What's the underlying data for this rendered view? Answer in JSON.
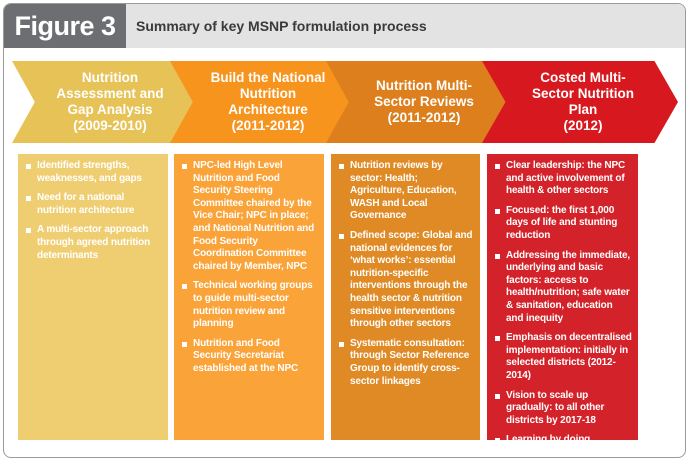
{
  "header": {
    "figure": "Figure 3",
    "title": "Summary of key MSNP formulation process"
  },
  "stages": [
    {
      "title": "Nutrition Assessment and Gap Analysis",
      "period": "(2009-2010)",
      "bullets": [
        "Identified strengths, weaknesses, and gaps",
        "Need for a national nutrition architecture",
        "A multi-sector approach through agreed nutrition determinants"
      ]
    },
    {
      "title": "Build the National Nutrition Architecture",
      "period": "(2011-2012)",
      "bullets": [
        "NPC-led High Level Nutrition and Food Security Steering Committee chaired by the Vice Chair; NPC in place; and National Nutrition and Food Security Coordination Committee chaired by Member, NPC",
        "Technical working groups to guide multi-sector nutrition review and planning",
        "Nutrition and Food Security Secretariat established at the NPC"
      ]
    },
    {
      "title": "Nutrition Multi-Sector Reviews",
      "period": "(2011-2012)",
      "bullets": [
        "Nutrition reviews by sector: Health; Agriculture, Education, WASH and Local Governance",
        "Defined scope: Global and national evidences for ‘what works’: essential nutrition-specific interventions through the health sector & nutrition sensitive interventions through other sectors",
        "Systematic consultation: through Sector Reference Group to identify cross-sector linkages"
      ]
    },
    {
      "title": "Costed Multi-Sector Nutrition Plan",
      "period": "(2012)",
      "bullets": [
        "Clear leadership: the NPC and active involvement of health & other sectors",
        "Focused: the first 1,000 days of life and stunting reduction",
        "Addressing the immediate, underlying and basic factors: access to health/nutrition; safe water & sanitation, education and inequity",
        "Emphasis on decentralised implementation: initially in selected districts (2012-2014)",
        "Vision to scale up gradually: to all other districts by 2017-18",
        "Learning by doing approach"
      ]
    }
  ]
}
